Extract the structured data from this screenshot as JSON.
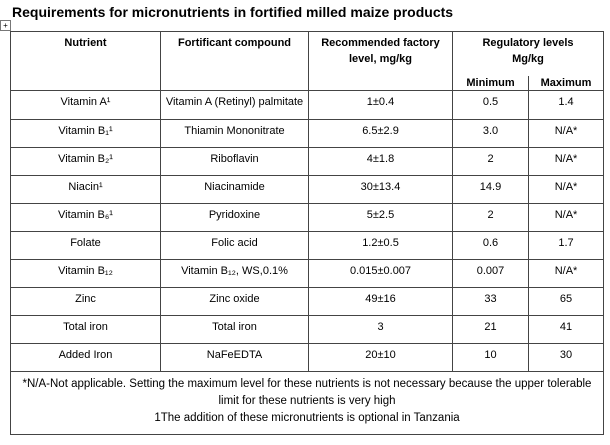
{
  "title": "Requirements for micronutrients in fortified milled maize products",
  "table": {
    "header": {
      "nutrient": "Nutrient",
      "fortificant": "Fortificant compound",
      "factory_level": "Recommended factory level, mg/kg",
      "regulatory_levels": "Regulatory levels",
      "regulatory_unit": "Mg/kg",
      "minimum": "Minimum",
      "maximum": "Maximum"
    },
    "rows": [
      [
        "Vitamin A¹",
        "Vitamin A (Retinyl) palmitate",
        "1±0.4",
        "0.5",
        "1.4"
      ],
      [
        "Vitamin B₁¹",
        "Thiamin Mononitrate",
        "6.5±2.9",
        "3.0",
        "N/A*"
      ],
      [
        "Vitamin B₂¹",
        "Riboflavin",
        "4±1.8",
        "2",
        "N/A*"
      ],
      [
        "Niacin¹",
        "Niacinamide",
        "30±13.4",
        "14.9",
        "N/A*"
      ],
      [
        "Vitamin B₆¹",
        "Pyridoxine",
        "5±2.5",
        "2",
        "N/A*"
      ],
      [
        "Folate",
        "Folic acid",
        "1.2±0.5",
        "0.6",
        "1.7"
      ],
      [
        "Vitamin B₁₂",
        "Vitamin B₁₂, WS,0.1%",
        "0.015±0.007",
        "0.007",
        "N/A*"
      ],
      [
        "Zinc",
        "Zinc oxide",
        "49±16",
        "33",
        "65"
      ],
      [
        "Total iron",
        "Total iron",
        "3",
        "21",
        "41"
      ],
      [
        "Added Iron",
        "NaFeEDTA",
        "20±10",
        "10",
        "30"
      ]
    ],
    "footnotes": [
      "*N/A-Not applicable.  Setting the maximum level for these nutrients is not necessary because the upper tolerable limit for these nutrients is very high",
      "1The addition of these micronutrients is optional in Tanzania"
    ]
  }
}
